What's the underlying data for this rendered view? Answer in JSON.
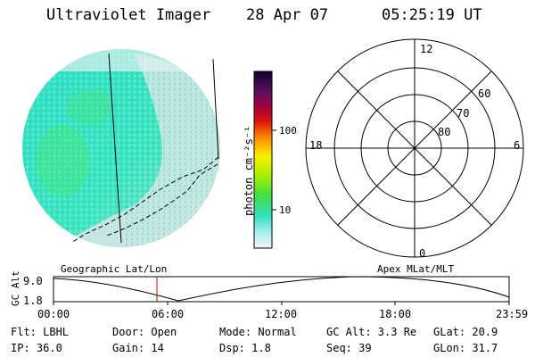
{
  "header": {
    "instrument": "Ultraviolet Imager",
    "date": "28 Apr 07",
    "time": "05:25:19 UT"
  },
  "colors": {
    "background": "#ffffff",
    "image_cyan": "#2ee0c8",
    "image_light": "#d8e8e8",
    "time_cursor": "#cc0000"
  },
  "colorbar": {
    "unit": "photon cm⁻²s⁻¹",
    "ticks": [
      "100",
      "10"
    ]
  },
  "polar": {
    "mlt_labels": {
      "top": "12",
      "left": "18",
      "right": "6",
      "bottom": "0"
    },
    "lat_labels": [
      "60",
      "70",
      "80"
    ]
  },
  "timeline": {
    "y_label": "GC Alt",
    "y_ticks": [
      "9.0",
      "1.8"
    ],
    "left_title": "Geographic Lat/Lon",
    "right_title": "Apex MLat/MLT",
    "x_ticks": [
      "00:00",
      "06:00",
      "12:00",
      "18:00",
      "23:59"
    ],
    "cursor_fraction": 0.227
  },
  "status": {
    "flt": "Flt: LBHL",
    "ip": "IP: 36.0",
    "door": "Door: Open",
    "gain": "Gain: 14",
    "mode": "Mode: Normal",
    "dsp": "Dsp:   1.8",
    "gc_alt": "GC Alt: 3.3 Re",
    "seq": "Seq: 39",
    "glat": "GLat:  20.9",
    "glon": "GLon:  31.7"
  }
}
